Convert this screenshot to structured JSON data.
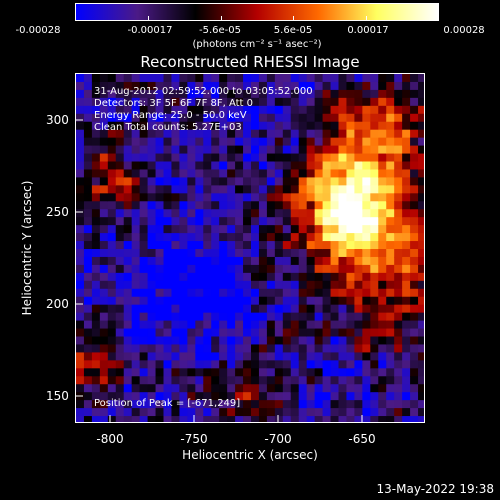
{
  "colorbar": {
    "ticks": [
      "-0.00028",
      "-0.00017",
      "-5.6e-05",
      "5.6e-05",
      "0.00017",
      "0.00028"
    ],
    "units": "(photons cm⁻² s⁻¹ asec⁻²)",
    "colors": [
      "#0000ff",
      "#4b1a86",
      "#000000",
      "#b30000",
      "#ff6a00",
      "#ffff60",
      "#ffffff"
    ]
  },
  "title": "Reconstructed RHESSI Image",
  "annotations": {
    "time": "31-Aug-2012 02:59:52.000 to 03:05:52.000",
    "detectors": "Detectors: 3F 5F 6F 7F 8F, Att 0",
    "energy": "Energy Range: 25.0 - 50.0 keV",
    "clean": "Clean    Total counts: 5.27E+03",
    "peak": "Position of Peak = [-671,249]"
  },
  "axes": {
    "xlabel": "Heliocentric X (arcsec)",
    "ylabel": "Heliocentric Y (arcsec)",
    "xticks": [
      "-800",
      "-750",
      "-700",
      "-650"
    ],
    "yticks": [
      "300",
      "250",
      "200",
      "150"
    ],
    "xrange": [
      -815,
      -625
    ],
    "yrange": [
      135,
      325
    ]
  },
  "footer": "13-May-2022 19:38"
}
